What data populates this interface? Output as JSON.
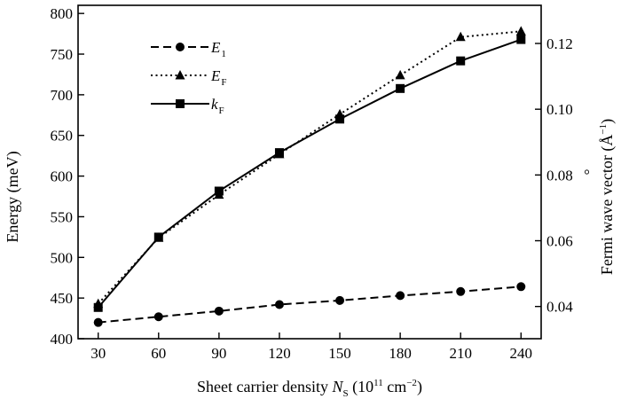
{
  "chart_data": {
    "type": "line",
    "x": [
      30,
      60,
      90,
      120,
      150,
      180,
      210,
      240
    ],
    "xlabel": {
      "main": "Sheet carrier density ",
      "sym": "N",
      "sub": "S",
      "units": " (10",
      "exp": "11",
      "unit2": " cm",
      "exp2": "−2",
      "close": ")"
    },
    "ylabel_left": "Energy (meV)",
    "ylabel_right": {
      "main": "Fermi wave vector (",
      "unit": "Å",
      "exp": "−1",
      "close": ")",
      "ring": "°"
    },
    "xlim": [
      20,
      250
    ],
    "ylim_left": [
      400,
      810
    ],
    "ylim_right": [
      0.0302,
      0.1316
    ],
    "xticks": [
      30,
      60,
      90,
      120,
      150,
      180,
      210,
      240
    ],
    "xtick_labels": [
      "30",
      "60",
      "90",
      "120",
      "150",
      "180",
      "210",
      "240"
    ],
    "yticks_left": [
      400,
      450,
      500,
      550,
      600,
      650,
      700,
      750,
      800
    ],
    "ytick_labels_left": [
      "400",
      "450",
      "500",
      "550",
      "600",
      "650",
      "700",
      "750",
      "800"
    ],
    "yticks_right": [
      0.04,
      0.06,
      0.08,
      0.1,
      0.12
    ],
    "ytick_labels_right": [
      "0.04",
      "0.06",
      "0.08",
      "0.10",
      "0.12"
    ],
    "grid": false,
    "legend_position": "top-left",
    "series": [
      {
        "name": "E",
        "sub": "1",
        "axis": "left",
        "marker": "circle",
        "dash": "dashed",
        "color": "#000000",
        "values": [
          420,
          427,
          434,
          442,
          447,
          453,
          458,
          464
        ]
      },
      {
        "name": "E",
        "sub": "F",
        "axis": "left",
        "marker": "triangle",
        "dash": "dotted",
        "color": "#000000",
        "values": [
          443,
          524,
          577,
          627,
          676,
          724,
          771,
          778
        ]
      },
      {
        "name": "k",
        "sub": "F",
        "axis": "right",
        "marker": "square",
        "dash": "solid",
        "color": "#000000",
        "values": [
          0.0397,
          0.0611,
          0.0751,
          0.0868,
          0.097,
          0.1063,
          0.1147,
          0.1212
        ]
      }
    ]
  }
}
